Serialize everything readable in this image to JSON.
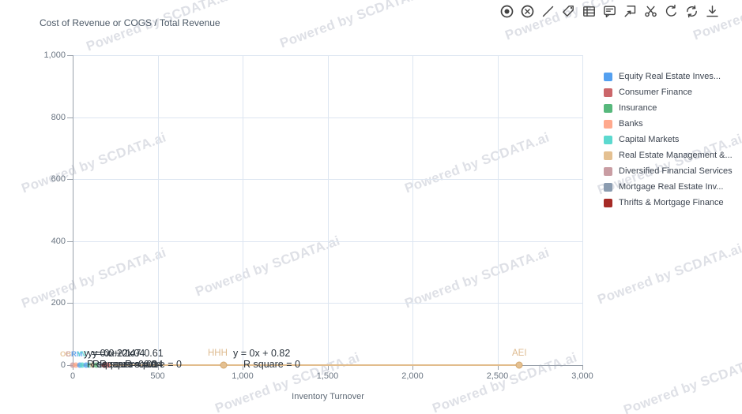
{
  "header": {
    "title": "Cost of Revenue or COGS / Total Revenue"
  },
  "watermark": {
    "text": "Powered by SCDATA.ai"
  },
  "toolbar": {
    "icons": [
      {
        "name": "target"
      },
      {
        "name": "circle-x"
      },
      {
        "name": "line-tool"
      },
      {
        "name": "tag"
      },
      {
        "name": "table"
      },
      {
        "name": "comment"
      },
      {
        "name": "flag-select"
      },
      {
        "name": "scissors"
      },
      {
        "name": "undo"
      },
      {
        "name": "refresh"
      },
      {
        "name": "download"
      }
    ]
  },
  "chart_data": {
    "type": "scatter",
    "title": "Cost of Revenue or COGS / Total Revenue",
    "xlabel": "Inventory Turnover",
    "ylabel": "",
    "xlim": [
      0,
      3000
    ],
    "ylim": [
      0,
      1000
    ],
    "grid": true,
    "legend_position": "right",
    "x_ticks": [
      {
        "v": 0,
        "label": "0"
      },
      {
        "v": 500,
        "label": "500"
      },
      {
        "v": 1000,
        "label": "1,000"
      },
      {
        "v": 1500,
        "label": "1,500"
      },
      {
        "v": 2000,
        "label": "2,000"
      },
      {
        "v": 2500,
        "label": "2,500"
      },
      {
        "v": 3000,
        "label": "3,000"
      }
    ],
    "y_ticks": [
      {
        "v": 0,
        "label": "0"
      },
      {
        "v": 200,
        "label": "200"
      },
      {
        "v": 400,
        "label": "400"
      },
      {
        "v": 600,
        "label": "600"
      },
      {
        "v": 800,
        "label": "800"
      },
      {
        "v": 1000,
        "label": "1,000"
      }
    ],
    "series": [
      {
        "name": "Equity Real Estate Inves...",
        "color": "#54a0f0"
      },
      {
        "name": "Consumer Finance",
        "color": "#cb666a"
      },
      {
        "name": "Insurance",
        "color": "#57b87c"
      },
      {
        "name": "Banks",
        "color": "#ffa98d"
      },
      {
        "name": "Capital Markets",
        "color": "#5cd9cf"
      },
      {
        "name": "Real Estate Management &...",
        "color": "#e4c091"
      },
      {
        "name": "Diversified Financial Services",
        "color": "#c99da3"
      },
      {
        "name": "Mortgage Real Estate Inv...",
        "color": "#8b9cb0"
      },
      {
        "name": "Thrifts & Mortgage Finance",
        "color": "#a62b26"
      }
    ],
    "points": [
      {
        "x": 0,
        "y": 0,
        "color": "#c99da3"
      },
      {
        "x": 20,
        "y": 0,
        "color": "#ffa98d"
      },
      {
        "x": 40,
        "y": 0,
        "color": "#54a0f0"
      },
      {
        "x": 58,
        "y": 0,
        "color": "#5cd9cf"
      },
      {
        "x": 78,
        "y": 0,
        "color": "#54a0f0"
      },
      {
        "x": 98,
        "y": 0,
        "color": "#5cd9cf"
      },
      {
        "x": 118,
        "y": 0,
        "color": "#e4c091"
      },
      {
        "x": 140,
        "y": 0,
        "color": "#57b87c"
      },
      {
        "x": 162,
        "y": 0,
        "color": "#8b9cb0"
      },
      {
        "x": 185,
        "y": 0,
        "color": "#a62b26"
      },
      {
        "x": 205,
        "y": 0,
        "color": "#cb666a"
      },
      {
        "x": 890,
        "y": 0,
        "color": "#e4c091",
        "label": "HHH",
        "emph": true
      },
      {
        "x": 2630,
        "y": 0,
        "color": "#e4c091",
        "label": "AEI",
        "emph": true
      }
    ],
    "trendline": {
      "series": "Real Estate Management &...",
      "color": "#e2bd8d",
      "x_start": 0,
      "x_end": 2630,
      "equation": "y = 0x + 0.82",
      "r_square": "R square = 0"
    },
    "annotations": [
      {
        "text": "y = 0x + 0.47",
        "x": 106,
        "y": 441,
        "color": "#2b343d",
        "size": 12.5
      },
      {
        "text": "y = 0x + 1.04",
        "x": 111,
        "y": 441,
        "color": "#2b343d",
        "size": 12.5
      },
      {
        "text": "y = 0.22x + 0.61",
        "x": 117,
        "y": 441,
        "color": "#2b343d",
        "size": 12.5
      },
      {
        "text": "R square = 0.01",
        "x": 110,
        "y": 455,
        "color": "#2b343d",
        "size": 12.5
      },
      {
        "text": "R square = 0.04",
        "x": 117,
        "y": 455,
        "color": "#2b343d",
        "size": 12.5
      },
      {
        "text": "R square = 0",
        "x": 126,
        "y": 455,
        "color": "#2b343d",
        "size": 12.5
      },
      {
        "text": "R square = 0",
        "x": 158,
        "y": 455,
        "color": "#2b343d",
        "size": 12.5
      },
      {
        "text": "HHH",
        "x": 263,
        "y": 442,
        "color": "#debb90",
        "size": 11.5
      },
      {
        "text": "y = 0x + 0.82",
        "x": 295,
        "y": 441,
        "color": "#2b343d",
        "size": 12.5
      },
      {
        "text": "R square = 0",
        "x": 308,
        "y": 455,
        "color": "#2b343d",
        "size": 12.5
      },
      {
        "text": "AEI",
        "x": 648,
        "y": 442,
        "color": "#debb90",
        "size": 11.5
      }
    ],
    "illegible_overlapping_point_labels": [
      {
        "text": "OB",
        "x": 76,
        "color": "#e4c091"
      },
      {
        "text": "CF",
        "x": 83,
        "color": "#c99da3"
      },
      {
        "text": "RM",
        "x": 90,
        "color": "#54a0f0"
      },
      {
        "text": "YV",
        "x": 97,
        "color": "#5cd9cf"
      }
    ]
  }
}
